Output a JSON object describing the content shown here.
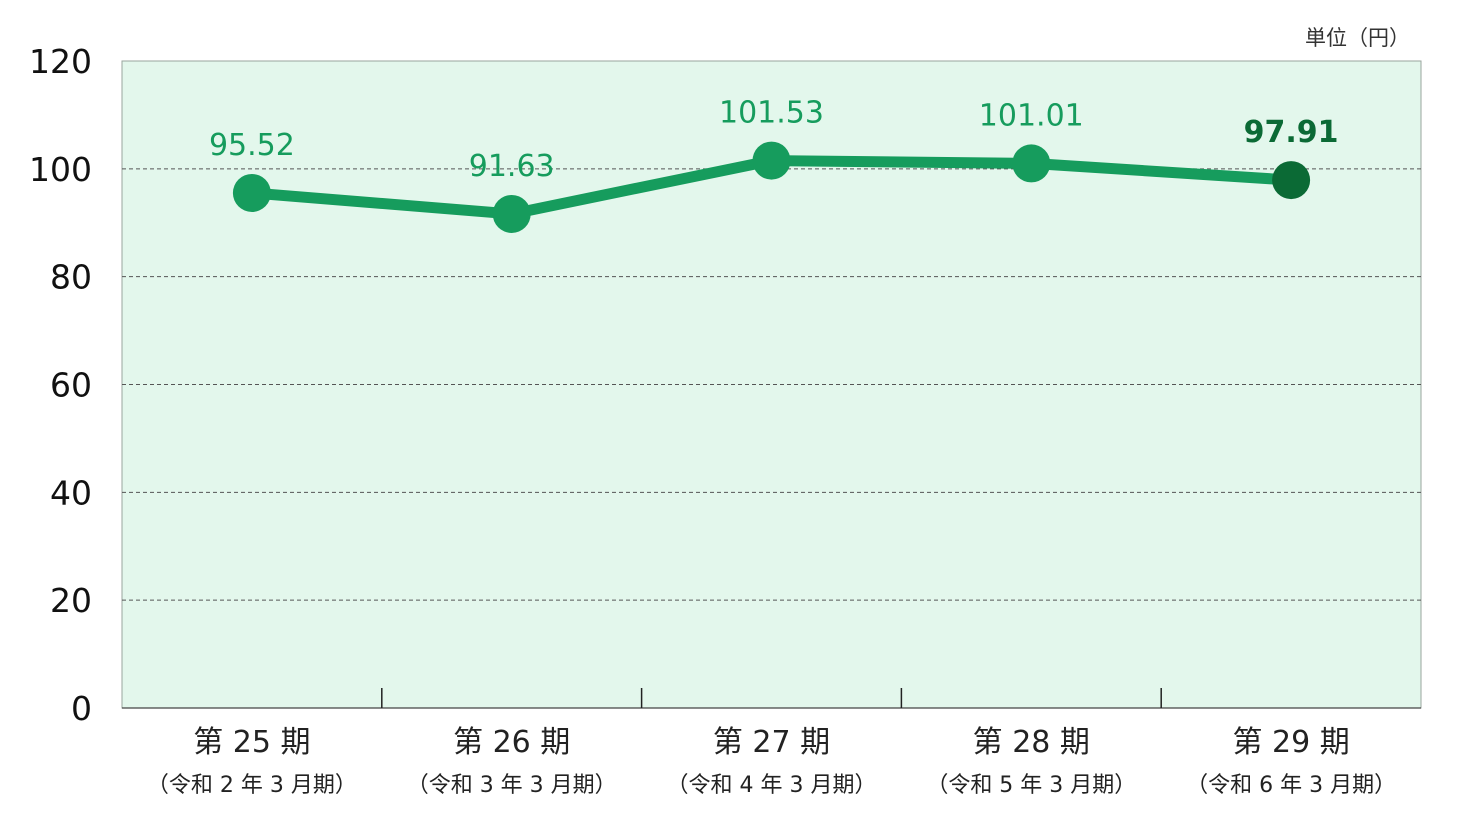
{
  "chart_data": {
    "type": "line",
    "unit": "単位（円）",
    "categories": [
      "第 25 期",
      "第 26 期",
      "第 27 期",
      "第 28 期",
      "第 29 期"
    ],
    "subcategories": [
      "（令和 2 年 3 月期）",
      "（令和 3 年 3 月期）",
      "（令和 4 年 3 月期）",
      "（令和 5 年 3 月期）",
      "（令和 6 年 3 月期）"
    ],
    "values": [
      95.52,
      91.63,
      101.53,
      101.01,
      97.91
    ],
    "data_labels": [
      "95.52",
      "91.63",
      "101.53",
      "101.01",
      "97.91"
    ],
    "ylim": [
      0,
      120
    ],
    "yticks": [
      0,
      20,
      40,
      60,
      80,
      100,
      120
    ],
    "grid": true,
    "colors": {
      "line": "#169c5d",
      "point": "#169c5d",
      "highlight_point": "#0b6a35",
      "label": "#169c5d",
      "highlight_label": "#0b6a35",
      "plot_background": "#e3f7ec",
      "grid": "#555555",
      "axis": "#444444"
    }
  }
}
